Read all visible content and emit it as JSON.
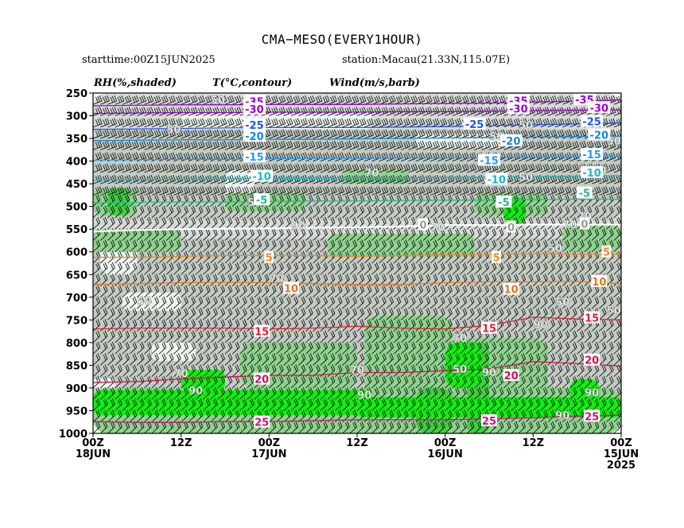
{
  "header": {
    "title": "CMA−MESO(EVERY1HOUR)",
    "starttime": "starttime:00Z15JUN2025",
    "station": "station:Macau(21.33N,115.07E)"
  },
  "legend": {
    "rh": "RH(%,shaded)",
    "temp": "T(°C,contour)",
    "wind": "Wind(m/s,barb)"
  },
  "colors": {
    "rh50": "#d7dbd7",
    "rh70": "#c3cbc3",
    "rh80": "#8fd28f",
    "rh90": "#44cc44",
    "rh95": "#11ee11",
    "rh_light": "#eef5ee",
    "barb": "#000000"
  },
  "chart_data": {
    "type": "time-height cross-section",
    "y_axis": {
      "label": "",
      "ticks": [
        250,
        300,
        350,
        400,
        450,
        500,
        550,
        600,
        650,
        700,
        750,
        800,
        850,
        900,
        950,
        1000
      ],
      "range": [
        1000,
        250
      ]
    },
    "x_axis": {
      "ticks": [
        {
          "hour": 0,
          "line1": "00Z",
          "line2": "18JUN",
          "line3": ""
        },
        {
          "hour": 12,
          "line1": "12Z",
          "line2": "",
          "line3": ""
        },
        {
          "hour": 24,
          "line1": "00Z",
          "line2": "17JUN",
          "line3": ""
        },
        {
          "hour": 36,
          "line1": "12Z",
          "line2": "",
          "line3": ""
        },
        {
          "hour": 48,
          "line1": "00Z",
          "line2": "16JUN",
          "line3": ""
        },
        {
          "hour": 60,
          "line1": "12Z",
          "line2": "",
          "line3": ""
        },
        {
          "hour": 72,
          "line1": "00Z",
          "line2": "15JUN",
          "line3": "2025"
        }
      ],
      "range": [
        0,
        72
      ]
    },
    "temperature_contours": [
      {
        "value": -35,
        "label": "-35",
        "color": "#9900cc",
        "pressure": [
          278,
          277,
          276,
          276,
          275,
          275,
          275,
          274,
          273,
          272,
          270,
          268,
          265
        ]
      },
      {
        "value": -30,
        "label": "-30",
        "color": "#9900cc",
        "pressure": [
          295,
          294,
          293,
          293,
          292,
          292,
          292,
          291,
          291,
          290,
          289,
          288,
          287
        ]
      },
      {
        "value": -25,
        "label": "-25",
        "color": "#2255ee",
        "pressure": [
          330,
          329,
          328,
          327,
          326,
          326,
          326,
          325,
          324,
          322,
          320,
          318,
          316
        ]
      },
      {
        "value": -20,
        "label": "-20",
        "color": "#1188dd",
        "pressure": [
          355,
          354,
          353,
          353,
          352,
          352,
          351,
          350,
          349,
          348,
          347,
          346,
          345
        ]
      },
      {
        "value": -15,
        "label": "-15",
        "color": "#2299ff",
        "pressure": [
          398,
          397,
          396,
          396,
          395,
          394,
          394,
          393,
          393,
          392,
          391,
          390,
          389
        ]
      },
      {
        "value": -10,
        "label": "-10",
        "color": "#11bbcc",
        "pressure": [
          442,
          441,
          440,
          439,
          438,
          438,
          437,
          437,
          436,
          435,
          434,
          433,
          432
        ]
      },
      {
        "value": -5,
        "label": "-5",
        "color": "#22bb88",
        "pressure": [
          492,
          491,
          490,
          490,
          489,
          488,
          488,
          487,
          486,
          486,
          485,
          484,
          484
        ]
      },
      {
        "value": 0,
        "label": "0",
        "color": "#ffffff",
        "pressure": [
          555,
          552,
          550,
          549,
          548,
          547,
          546,
          544,
          541,
          541,
          540,
          540,
          540
        ]
      },
      {
        "value": 5,
        "label": "5",
        "color": "#ee8822",
        "pressure": [
          612,
          612,
          610,
          608,
          608,
          608,
          610,
          608,
          606,
          605,
          604,
          605,
          605
        ]
      },
      {
        "value": 10,
        "label": "10",
        "color": "#dd7722",
        "pressure": [
          672,
          670,
          668,
          667,
          668,
          670,
          672,
          672,
          668,
          666,
          666,
          665,
          670
        ]
      },
      {
        "value": 15,
        "label": "15",
        "color": "#dd2233",
        "pressure": [
          770,
          768,
          768,
          768,
          770,
          768,
          764,
          768,
          770,
          762,
          744,
          748,
          750
        ]
      },
      {
        "value": 20,
        "label": "20",
        "color": "#cc1155",
        "pressure": [
          888,
          886,
          880,
          876,
          872,
          872,
          866,
          866,
          862,
          858,
          842,
          846,
          852
        ]
      },
      {
        "value": 25,
        "label": "25",
        "color": "#cc1177",
        "pressure": [
          974,
          976,
          976,
          974,
          974,
          972,
          970,
          970,
          970,
          968,
          966,
          962,
          960
        ]
      }
    ],
    "temperature_labels": [
      {
        "text": "-35",
        "hour": 22,
        "pressure": 268
      },
      {
        "text": "-35",
        "hour": 58,
        "pressure": 267
      },
      {
        "text": "-35",
        "hour": 67,
        "pressure": 264
      },
      {
        "text": "-30",
        "hour": 22,
        "pressure": 285
      },
      {
        "text": "-30",
        "hour": 58,
        "pressure": 284
      },
      {
        "text": "-30",
        "hour": 69,
        "pressure": 282
      },
      {
        "text": "-25",
        "hour": 22,
        "pressure": 320
      },
      {
        "text": "-25",
        "hour": 52,
        "pressure": 318
      },
      {
        "text": "-25",
        "hour": 68,
        "pressure": 312
      },
      {
        "text": "-20",
        "hour": 22,
        "pressure": 345
      },
      {
        "text": "-20",
        "hour": 57,
        "pressure": 355
      },
      {
        "text": "-20",
        "hour": 69,
        "pressure": 342
      },
      {
        "text": "-15",
        "hour": 22,
        "pressure": 390
      },
      {
        "text": "-15",
        "hour": 54,
        "pressure": 398
      },
      {
        "text": "-15",
        "hour": 68,
        "pressure": 385
      },
      {
        "text": "-10",
        "hour": 23,
        "pressure": 433
      },
      {
        "text": "-10",
        "hour": 55,
        "pressure": 440
      },
      {
        "text": "-10",
        "hour": 68,
        "pressure": 425
      },
      {
        "text": "-5",
        "hour": 23,
        "pressure": 485
      },
      {
        "text": "-5",
        "hour": 56,
        "pressure": 490
      },
      {
        "text": "-5",
        "hour": 67,
        "pressure": 470
      },
      {
        "text": "0",
        "hour": 45,
        "pressure": 540
      },
      {
        "text": "0",
        "hour": 57,
        "pressure": 545
      },
      {
        "text": "0",
        "hour": 67,
        "pressure": 538
      },
      {
        "text": "5",
        "hour": 24,
        "pressure": 612
      },
      {
        "text": "5",
        "hour": 55,
        "pressure": 612
      },
      {
        "text": "5",
        "hour": 70,
        "pressure": 600
      },
      {
        "text": "10",
        "hour": 27,
        "pressure": 680
      },
      {
        "text": "10",
        "hour": 57,
        "pressure": 682
      },
      {
        "text": "10",
        "hour": 69,
        "pressure": 665
      },
      {
        "text": "15",
        "hour": 23,
        "pressure": 775
      },
      {
        "text": "15",
        "hour": 54,
        "pressure": 768
      },
      {
        "text": "15",
        "hour": 68,
        "pressure": 745
      },
      {
        "text": "20",
        "hour": 23,
        "pressure": 880
      },
      {
        "text": "20",
        "hour": 57,
        "pressure": 872
      },
      {
        "text": "20",
        "hour": 68,
        "pressure": 838
      },
      {
        "text": "25",
        "hour": 23,
        "pressure": 975
      },
      {
        "text": "25",
        "hour": 54,
        "pressure": 972
      },
      {
        "text": "25",
        "hour": 68,
        "pressure": 962
      }
    ],
    "rh_labels": [
      {
        "text": "50",
        "hour": 17,
        "pressure": 265
      },
      {
        "text": "50",
        "hour": 55,
        "pressure": 345
      },
      {
        "text": "50",
        "hour": 59,
        "pressure": 320
      },
      {
        "text": "50",
        "hour": 71,
        "pressure": 355
      },
      {
        "text": "50",
        "hour": 11,
        "pressure": 330
      },
      {
        "text": "70",
        "hour": 69,
        "pressure": 420
      },
      {
        "text": "50",
        "hour": 59,
        "pressure": 435
      },
      {
        "text": "70",
        "hour": 38,
        "pressure": 425
      },
      {
        "text": "50",
        "hour": 22,
        "pressure": 490
      },
      {
        "text": "70",
        "hour": 65,
        "pressure": 540
      },
      {
        "text": "50",
        "hour": 63,
        "pressure": 592
      },
      {
        "text": "90",
        "hour": 28,
        "pressure": 542
      },
      {
        "text": "70",
        "hour": 67,
        "pressure": 522
      },
      {
        "text": "70",
        "hour": 47,
        "pressure": 545
      },
      {
        "text": "70",
        "hour": 25,
        "pressure": 658
      },
      {
        "text": "50",
        "hour": 7,
        "pressure": 708
      },
      {
        "text": "50",
        "hour": 64,
        "pressure": 710
      },
      {
        "text": "70",
        "hour": 50,
        "pressure": 790
      },
      {
        "text": "90",
        "hour": 61,
        "pressure": 760
      },
      {
        "text": "50",
        "hour": 71,
        "pressure": 728
      },
      {
        "text": "70",
        "hour": 36,
        "pressure": 860
      },
      {
        "text": "50",
        "hour": 50,
        "pressure": 858
      },
      {
        "text": "70",
        "hour": 12,
        "pressure": 868
      },
      {
        "text": "90",
        "hour": 54,
        "pressure": 865
      },
      {
        "text": "90",
        "hour": 14,
        "pressure": 905
      },
      {
        "text": "90",
        "hour": 37,
        "pressure": 915
      },
      {
        "text": "90",
        "hour": 68,
        "pressure": 910
      },
      {
        "text": "90",
        "hour": 64,
        "pressure": 960
      }
    ],
    "rh_regions": [
      {
        "level": "rh50",
        "hour": [
          0,
          72
        ],
        "pressure": [
          250,
          1000
        ]
      },
      {
        "level": "rh70",
        "hour": [
          0,
          72
        ],
        "pressure": [
          330,
          530
        ]
      },
      {
        "level": "rh70",
        "hour": [
          0,
          72
        ],
        "pressure": [
          570,
          1000
        ]
      },
      {
        "level": "rh_light",
        "hour": [
          12,
          38
        ],
        "pressure": [
          290,
          330
        ]
      },
      {
        "level": "rh_light",
        "hour": [
          44,
          57
        ],
        "pressure": [
          340,
          370
        ]
      },
      {
        "level": "rh_light",
        "hour": [
          18,
          22
        ],
        "pressure": [
          420,
          490
        ]
      },
      {
        "level": "rh_light",
        "hour": [
          1,
          6
        ],
        "pressure": [
          580,
          650
        ]
      },
      {
        "level": "rh_light",
        "hour": [
          4,
          12
        ],
        "pressure": [
          690,
          730
        ]
      },
      {
        "level": "rh_light",
        "hour": [
          8,
          14
        ],
        "pressure": [
          800,
          840
        ]
      },
      {
        "level": "rh_light",
        "hour": [
          0,
          3
        ],
        "pressure": [
          880,
          900
        ]
      },
      {
        "level": "rh80",
        "hour": [
          18,
          29
        ],
        "pressure": [
          470,
          510
        ]
      },
      {
        "level": "rh80",
        "hour": [
          0,
          6
        ],
        "pressure": [
          460,
          520
        ]
      },
      {
        "level": "rh80",
        "hour": [
          34,
          43
        ],
        "pressure": [
          420,
          450
        ]
      },
      {
        "level": "rh80",
        "hour": [
          52,
          62
        ],
        "pressure": [
          470,
          520
        ]
      },
      {
        "level": "rh80",
        "hour": [
          37,
          49
        ],
        "pressure": [
          740,
          1000
        ]
      },
      {
        "level": "rh80",
        "hour": [
          20,
          36
        ],
        "pressure": [
          800,
          900
        ]
      },
      {
        "level": "rh80",
        "hour": [
          49,
          62
        ],
        "pressure": [
          790,
          1000
        ]
      },
      {
        "level": "rh80",
        "hour": [
          0,
          72
        ],
        "pressure": [
          900,
          1000
        ]
      },
      {
        "level": "rh80",
        "hour": [
          0,
          12
        ],
        "pressure": [
          550,
          600
        ]
      },
      {
        "level": "rh80",
        "hour": [
          32,
          52
        ],
        "pressure": [
          560,
          610
        ]
      },
      {
        "level": "rh80",
        "hour": [
          64,
          72
        ],
        "pressure": [
          540,
          600
        ]
      },
      {
        "level": "rh90",
        "hour": [
          2,
          5
        ],
        "pressure": [
          460,
          520
        ]
      },
      {
        "level": "rh90",
        "hour": [
          56,
          59
        ],
        "pressure": [
          480,
          540
        ]
      },
      {
        "level": "rh90",
        "hour": [
          51,
          54
        ],
        "pressure": [
          800,
          1000
        ]
      },
      {
        "level": "rh90",
        "hour": [
          44,
          49
        ],
        "pressure": [
          900,
          1000
        ]
      },
      {
        "level": "rh95",
        "hour": [
          0,
          38
        ],
        "pressure": [
          905,
          960
        ]
      },
      {
        "level": "rh95",
        "hour": [
          36,
          72
        ],
        "pressure": [
          920,
          965
        ]
      },
      {
        "level": "rh95",
        "hour": [
          48,
          53
        ],
        "pressure": [
          800,
          900
        ]
      },
      {
        "level": "rh95",
        "hour": [
          56,
          59
        ],
        "pressure": [
          490,
          530
        ]
      },
      {
        "level": "rh95",
        "hour": [
          65,
          69
        ],
        "pressure": [
          880,
          960
        ]
      },
      {
        "level": "rh95",
        "hour": [
          12,
          18
        ],
        "pressure": [
          860,
          905
        ]
      }
    ],
    "wind_barbs": {
      "levels": [
        250,
        275,
        300,
        325,
        350,
        375,
        400,
        425,
        450,
        475,
        500,
        525,
        550,
        575,
        600,
        625,
        650,
        675,
        700,
        725,
        750,
        775,
        800,
        825,
        850,
        875,
        900,
        925,
        950,
        975,
        1000
      ],
      "hours_step": 1,
      "direction_note": "westerly/southwesterly aloft, southwesterly low levels"
    },
    "grid": false,
    "legend_placement": "top"
  }
}
